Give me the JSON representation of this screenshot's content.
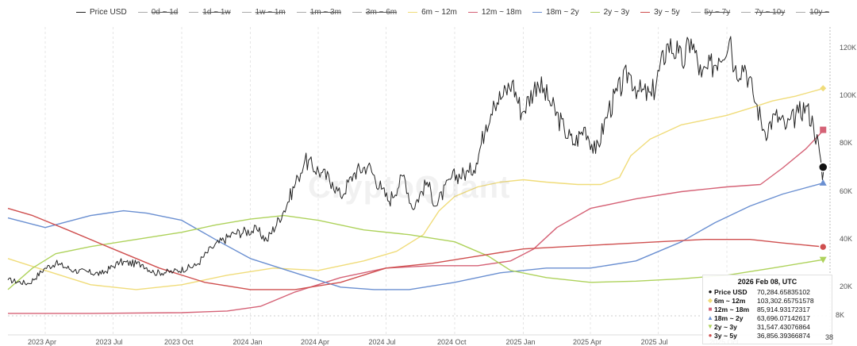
{
  "legend": [
    {
      "label": "Price USD",
      "color": "#222222",
      "active": true
    },
    {
      "label": "0d ~ 1d",
      "color": "#9e9e9e",
      "active": false
    },
    {
      "label": "1d ~ 1w",
      "color": "#9e9e9e",
      "active": false
    },
    {
      "label": "1w ~ 1m",
      "color": "#9e9e9e",
      "active": false
    },
    {
      "label": "1m ~ 3m",
      "color": "#9e9e9e",
      "active": false
    },
    {
      "label": "3m ~ 6m",
      "color": "#9e9e9e",
      "active": false
    },
    {
      "label": "6m ~ 12m",
      "color": "#f0dc7a",
      "active": true
    },
    {
      "label": "12m ~ 18m",
      "color": "#d56276",
      "active": true
    },
    {
      "label": "18m ~ 2y",
      "color": "#6a8fd1",
      "active": true
    },
    {
      "label": "2y ~ 3y",
      "color": "#aed25b",
      "active": true
    },
    {
      "label": "3y ~ 5y",
      "color": "#cf4f4f",
      "active": true
    },
    {
      "label": "5y ~ 7y",
      "color": "#9e9e9e",
      "active": false
    },
    {
      "label": "7y ~ 10y",
      "color": "#9e9e9e",
      "active": false
    },
    {
      "label": "10y ~",
      "color": "#9e9e9e",
      "active": false
    }
  ],
  "watermark": "CryptoQuant",
  "tooltip": {
    "title": "2026 Feb 08, UTC",
    "rows": [
      {
        "mark": "●",
        "color": "#111111",
        "name": "Price USD",
        "value": "70,284.65835102"
      },
      {
        "mark": "◆",
        "color": "#f0dc7a",
        "name": "6m ~ 12m",
        "value": "103,302.65751578"
      },
      {
        "mark": "■",
        "color": "#d56276",
        "name": "12m ~ 18m",
        "value": "85,914.93172317"
      },
      {
        "mark": "▲",
        "color": "#6a8fd1",
        "name": "18m ~ 2y",
        "value": "63,696.07142617"
      },
      {
        "mark": "▼",
        "color": "#aed25b",
        "name": "2y ~ 3y",
        "value": "31,547.43076864"
      },
      {
        "mark": "●",
        "color": "#cf4f4f",
        "name": "3y ~ 5y",
        "value": "36,856.39366874"
      }
    ]
  },
  "end_badge": "38",
  "chart_data": {
    "type": "line",
    "x_ticks": [
      "2023 Apr",
      "2023 Jul",
      "2023 Oct",
      "2024 Jan",
      "2024 Apr",
      "2024 Jul",
      "2024 Oct",
      "2025 Jan",
      "2025 Apr",
      "2025 Jul",
      "2025 Oct"
    ],
    "x_range": [
      "2023-02-10",
      "2026-02-12"
    ],
    "y_ticks": [
      "8K",
      "20K",
      "40K",
      "60K",
      "80K",
      "100K",
      "120K"
    ],
    "y_tick_values": [
      8000,
      20000,
      40000,
      60000,
      80000,
      100000,
      120000
    ],
    "ylim": [
      0,
      129000
    ],
    "grid": "vertical dashed",
    "series": [
      {
        "name": "Price USD",
        "color": "#222222",
        "points": [
          [
            "2023-02-10",
            23000
          ],
          [
            "2023-03-10",
            21500
          ],
          [
            "2023-04-01",
            28000
          ],
          [
            "2023-04-15",
            30000
          ],
          [
            "2023-05-10",
            27000
          ],
          [
            "2023-06-15",
            25500
          ],
          [
            "2023-07-10",
            30500
          ],
          [
            "2023-08-10",
            29500
          ],
          [
            "2023-08-25",
            26000
          ],
          [
            "2023-09-20",
            26500
          ],
          [
            "2023-10-20",
            29000
          ],
          [
            "2023-11-10",
            36500
          ],
          [
            "2023-12-10",
            42500
          ],
          [
            "2024-01-10",
            44000
          ],
          [
            "2024-01-23",
            39500
          ],
          [
            "2024-02-15",
            52000
          ],
          [
            "2024-03-05",
            66000
          ],
          [
            "2024-03-14",
            73000
          ],
          [
            "2024-04-05",
            68000
          ],
          [
            "2024-04-20",
            64000
          ],
          [
            "2024-05-01",
            58000
          ],
          [
            "2024-05-20",
            68000
          ],
          [
            "2024-06-07",
            71000
          ],
          [
            "2024-06-25",
            61000
          ],
          [
            "2024-07-05",
            56000
          ],
          [
            "2024-07-25",
            67000
          ],
          [
            "2024-08-05",
            53000
          ],
          [
            "2024-08-25",
            64000
          ],
          [
            "2024-09-06",
            54000
          ],
          [
            "2024-09-27",
            66000
          ],
          [
            "2024-10-20",
            68000
          ],
          [
            "2024-10-30",
            72000
          ],
          [
            "2024-11-12",
            88000
          ],
          [
            "2024-11-22",
            98000
          ],
          [
            "2024-12-05",
            100000
          ],
          [
            "2024-12-17",
            106000
          ],
          [
            "2024-12-30",
            93000
          ],
          [
            "2025-01-20",
            106000
          ],
          [
            "2025-02-05",
            98000
          ],
          [
            "2025-02-25",
            86000
          ],
          [
            "2025-03-10",
            80000
          ],
          [
            "2025-03-25",
            87000
          ],
          [
            "2025-04-08",
            76000
          ],
          [
            "2025-04-25",
            94000
          ],
          [
            "2025-05-22",
            110000
          ],
          [
            "2025-06-05",
            102000
          ],
          [
            "2025-06-22",
            100000
          ],
          [
            "2025-07-14",
            122000
          ],
          [
            "2025-07-28",
            118000
          ],
          [
            "2025-08-02",
            113000
          ],
          [
            "2025-08-14",
            124000
          ],
          [
            "2025-08-28",
            108000
          ],
          [
            "2025-09-20",
            116000
          ],
          [
            "2025-10-06",
            125000
          ],
          [
            "2025-10-11",
            111000
          ],
          [
            "2025-10-25",
            113000
          ],
          [
            "2025-11-05",
            101000
          ],
          [
            "2025-11-21",
            85000
          ],
          [
            "2025-12-05",
            92000
          ],
          [
            "2025-12-20",
            87000
          ],
          [
            "2026-01-05",
            93000
          ],
          [
            "2026-01-15",
            96000
          ],
          [
            "2026-01-25",
            88000
          ],
          [
            "2026-02-02",
            77000
          ],
          [
            "2026-02-06",
            65000
          ],
          [
            "2026-02-08",
            70284.65835102
          ]
        ]
      },
      {
        "name": "6m ~ 12m",
        "color": "#f0dc7a",
        "points": [
          [
            "2023-02-10",
            32000
          ],
          [
            "2023-04-01",
            27000
          ],
          [
            "2023-06-01",
            21000
          ],
          [
            "2023-08-01",
            19000
          ],
          [
            "2023-10-01",
            21000
          ],
          [
            "2023-12-01",
            25000
          ],
          [
            "2024-02-01",
            28000
          ],
          [
            "2024-04-01",
            27000
          ],
          [
            "2024-06-01",
            31000
          ],
          [
            "2024-07-15",
            35000
          ],
          [
            "2024-08-20",
            42000
          ],
          [
            "2024-09-10",
            52000
          ],
          [
            "2024-10-01",
            58000
          ],
          [
            "2024-11-01",
            62000
          ],
          [
            "2024-12-01",
            64000
          ],
          [
            "2025-01-01",
            65000
          ],
          [
            "2025-02-01",
            64000
          ],
          [
            "2025-03-15",
            63000
          ],
          [
            "2025-04-15",
            63000
          ],
          [
            "2025-05-10",
            66000
          ],
          [
            "2025-05-25",
            75000
          ],
          [
            "2025-06-20",
            82000
          ],
          [
            "2025-08-01",
            88000
          ],
          [
            "2025-09-01",
            90000
          ],
          [
            "2025-10-01",
            92000
          ],
          [
            "2025-11-01",
            95000
          ],
          [
            "2025-12-01",
            98000
          ],
          [
            "2026-01-01",
            100000
          ],
          [
            "2026-02-08",
            103302.65751578
          ]
        ]
      },
      {
        "name": "12m ~ 18m",
        "color": "#d56276",
        "points": [
          [
            "2023-02-10",
            9000
          ],
          [
            "2023-06-01",
            9000
          ],
          [
            "2023-10-01",
            9300
          ],
          [
            "2023-12-01",
            10000
          ],
          [
            "2024-01-15",
            12000
          ],
          [
            "2024-03-01",
            18000
          ],
          [
            "2024-05-01",
            24000
          ],
          [
            "2024-07-01",
            28000
          ],
          [
            "2024-09-01",
            29000
          ],
          [
            "2024-11-01",
            29000
          ],
          [
            "2024-12-15",
            31000
          ],
          [
            "2025-01-15",
            36000
          ],
          [
            "2025-02-15",
            45000
          ],
          [
            "2025-04-01",
            53000
          ],
          [
            "2025-06-01",
            57000
          ],
          [
            "2025-08-01",
            60000
          ],
          [
            "2025-10-01",
            62000
          ],
          [
            "2025-11-15",
            63000
          ],
          [
            "2025-12-15",
            70000
          ],
          [
            "2026-01-15",
            78000
          ],
          [
            "2026-02-08",
            85914.93172317
          ]
        ]
      },
      {
        "name": "18m ~ 2y",
        "color": "#6a8fd1",
        "points": [
          [
            "2023-02-10",
            49000
          ],
          [
            "2023-04-01",
            45000
          ],
          [
            "2023-06-01",
            50000
          ],
          [
            "2023-07-15",
            52000
          ],
          [
            "2023-08-15",
            51000
          ],
          [
            "2023-10-01",
            48000
          ],
          [
            "2023-11-15",
            40000
          ],
          [
            "2024-01-01",
            32000
          ],
          [
            "2024-03-01",
            26000
          ],
          [
            "2024-05-01",
            20000
          ],
          [
            "2024-06-15",
            19000
          ],
          [
            "2024-08-01",
            19000
          ],
          [
            "2024-10-01",
            22000
          ],
          [
            "2024-12-01",
            26000
          ],
          [
            "2025-02-01",
            28000
          ],
          [
            "2025-04-01",
            28000
          ],
          [
            "2025-06-01",
            31000
          ],
          [
            "2025-08-01",
            39000
          ],
          [
            "2025-09-15",
            47000
          ],
          [
            "2025-11-01",
            54000
          ],
          [
            "2025-12-15",
            59000
          ],
          [
            "2026-02-08",
            63696.07142617
          ]
        ]
      },
      {
        "name": "2y ~ 3y",
        "color": "#aed25b",
        "points": [
          [
            "2023-02-10",
            19000
          ],
          [
            "2023-03-15",
            28000
          ],
          [
            "2023-04-15",
            34000
          ],
          [
            "2023-06-01",
            37000
          ],
          [
            "2023-08-01",
            40000
          ],
          [
            "2023-10-01",
            43000
          ],
          [
            "2023-11-15",
            46000
          ],
          [
            "2024-01-01",
            48500
          ],
          [
            "2024-02-15",
            50000
          ],
          [
            "2024-04-01",
            48000
          ],
          [
            "2024-06-01",
            44000
          ],
          [
            "2024-08-01",
            42000
          ],
          [
            "2024-10-01",
            39000
          ],
          [
            "2024-11-15",
            33000
          ],
          [
            "2024-12-15",
            27000
          ],
          [
            "2025-02-01",
            24000
          ],
          [
            "2025-04-01",
            22000
          ],
          [
            "2025-06-01",
            22500
          ],
          [
            "2025-08-01",
            23500
          ],
          [
            "2025-10-01",
            25000
          ],
          [
            "2025-12-01",
            28000
          ],
          [
            "2026-02-08",
            31547.43076864
          ]
        ]
      },
      {
        "name": "3y ~ 5y",
        "color": "#cf4f4f",
        "points": [
          [
            "2023-02-10",
            53000
          ],
          [
            "2023-03-15",
            50000
          ],
          [
            "2023-05-01",
            44000
          ],
          [
            "2023-07-01",
            36000
          ],
          [
            "2023-09-01",
            28000
          ],
          [
            "2023-11-01",
            22000
          ],
          [
            "2024-01-01",
            19000
          ],
          [
            "2024-03-01",
            19000
          ],
          [
            "2024-05-01",
            22000
          ],
          [
            "2024-07-01",
            28000
          ],
          [
            "2024-09-01",
            30000
          ],
          [
            "2024-11-01",
            33000
          ],
          [
            "2025-01-01",
            36000
          ],
          [
            "2025-03-01",
            37000
          ],
          [
            "2025-05-01",
            38000
          ],
          [
            "2025-07-01",
            39000
          ],
          [
            "2025-09-01",
            40000
          ],
          [
            "2025-11-01",
            40000
          ],
          [
            "2025-12-15",
            38500
          ],
          [
            "2026-02-08",
            36856.39366874
          ]
        ]
      }
    ]
  }
}
